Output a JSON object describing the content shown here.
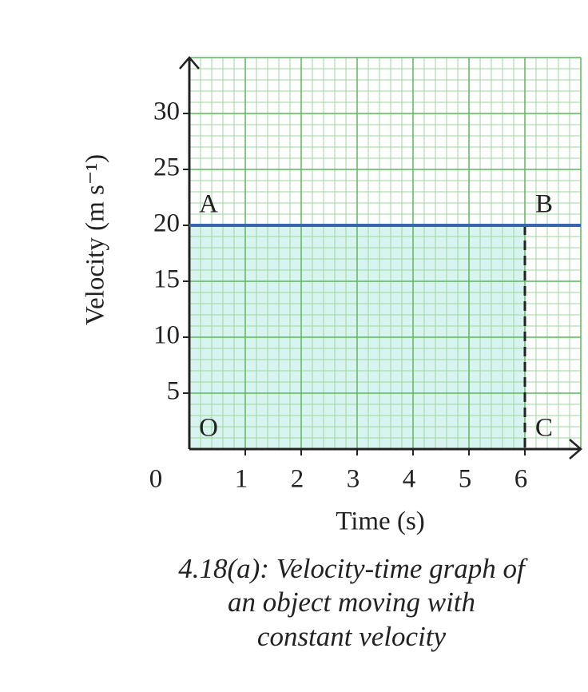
{
  "chart_data": {
    "type": "line",
    "x_label": "Time (s)",
    "y_label": "Velocity (m s⁻¹)",
    "caption": [
      "4.18(a): Velocity-time graph of",
      "an object moving with",
      "constant velocity"
    ],
    "xlim": [
      0,
      7
    ],
    "ylim": [
      0,
      35
    ],
    "xticks": [
      0,
      1,
      2,
      3,
      4,
      5,
      6
    ],
    "yticks": [
      5,
      10,
      15,
      20,
      25,
      30
    ],
    "grid": true,
    "x": [
      0,
      7
    ],
    "values": [
      20,
      20
    ],
    "color": "#3a64b0",
    "points": [
      {
        "label": "O",
        "x": 0,
        "y": 0
      },
      {
        "label": "A",
        "x": 0,
        "y": 20
      },
      {
        "label": "B",
        "x": 6,
        "y": 20
      },
      {
        "label": "C",
        "x": 6,
        "y": 0
      }
    ]
  }
}
